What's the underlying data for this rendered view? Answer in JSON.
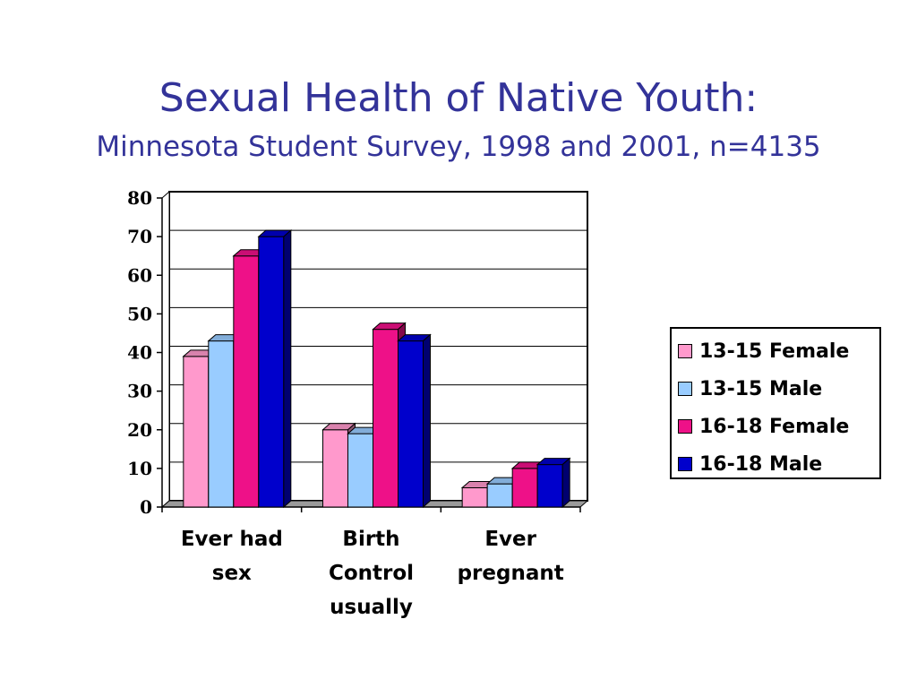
{
  "slide": {
    "title": "Sexual Health of Native Youth:",
    "subtitle": "Minnesota Student Survey, 1998 and 2001, n=4135"
  },
  "chart_data": {
    "type": "bar",
    "categories": [
      [
        "Ever had",
        "sex"
      ],
      [
        "Birth",
        "Control",
        "usually"
      ],
      [
        "Ever",
        "pregnant"
      ]
    ],
    "series": [
      {
        "name": "13-15 Female",
        "values": [
          39,
          20,
          5
        ],
        "color": "#ff99cc"
      },
      {
        "name": "13-15 Male",
        "values": [
          43,
          19,
          6
        ],
        "color": "#99ccff"
      },
      {
        "name": "16-18 Female",
        "values": [
          65,
          46,
          10
        ],
        "color": "#ee1188"
      },
      {
        "name": "16-18 Male",
        "values": [
          70,
          43,
          11
        ],
        "color": "#0000cc"
      }
    ],
    "ylim": [
      0,
      80
    ],
    "yticks": [
      0,
      10,
      20,
      30,
      40,
      50,
      60,
      70,
      80
    ],
    "grid": true,
    "legend_position": "right",
    "three_d": true
  }
}
